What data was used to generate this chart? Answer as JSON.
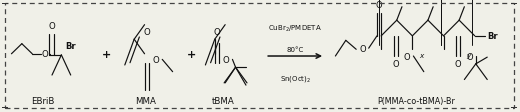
{
  "bg_color": "#f0f0e8",
  "border_color": "#444444",
  "text_color": "#111111",
  "conditions_line1": "CuBr$_2$/PMDETA",
  "conditions_line2": "80°C",
  "conditions_line3": "Sn(Oct)$_2$",
  "label_EBriB": "EBriB",
  "label_MMA": "MMA",
  "label_tBMA": "tBMA",
  "label_product": "P(MMA-co-tBMA)-Br",
  "figwidth": 5.2,
  "figheight": 1.13,
  "dpi": 100
}
